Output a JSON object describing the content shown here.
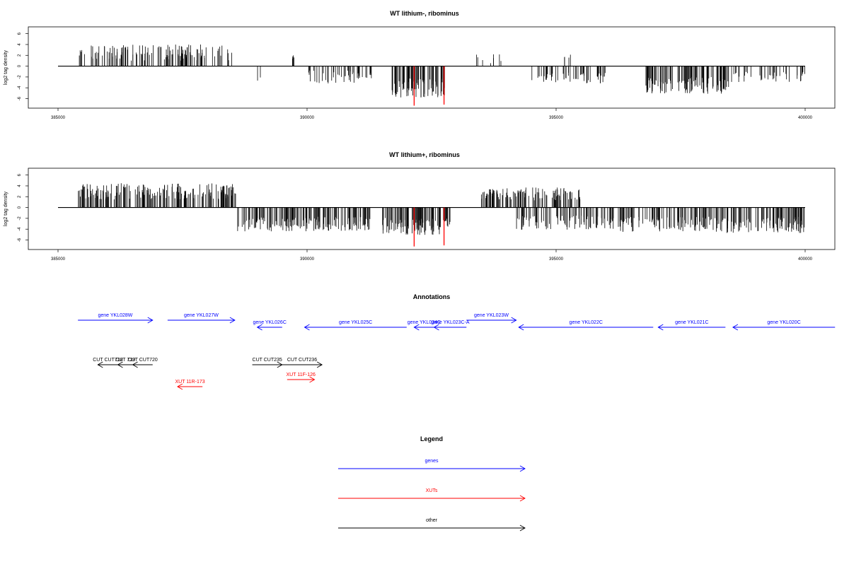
{
  "chart_data": [
    {
      "type": "bar",
      "title": "WT lithium-, ribominus",
      "ylabel": "log2 tag density",
      "xlabel": "",
      "xlim": [
        385000,
        400000
      ],
      "ylim": [
        -7.5,
        7
      ],
      "x_ticks": [
        385000,
        390000,
        395000,
        400000
      ],
      "y_ticks": [
        6,
        4,
        2,
        0,
        -2,
        -4,
        -6
      ],
      "grid": false,
      "series": [
        {
          "segments": [
            {
              "x0": 385400,
              "x1": 388500,
              "mean": 2.5,
              "spread": 1.5,
              "density": 130
            },
            {
              "x0": 389700,
              "x1": 389750,
              "mean": 2.0,
              "spread": 0.7,
              "density": 4
            },
            {
              "x0": 389000,
              "x1": 389100,
              "mean": -2.5,
              "spread": 0.5,
              "density": 2
            },
            {
              "x0": 390000,
              "x1": 391300,
              "mean": -2.0,
              "spread": 1.2,
              "density": 45
            },
            {
              "x0": 391700,
              "x1": 392800,
              "mean": -4.0,
              "spread": 1.8,
              "density": 80
            },
            {
              "x0": 393300,
              "x1": 394000,
              "mean": 1.5,
              "spread": 1.0,
              "density": 8
            },
            {
              "x0": 394500,
              "x1": 396000,
              "mean": -2.2,
              "spread": 1.0,
              "density": 55
            },
            {
              "x0": 395100,
              "x1": 395300,
              "mean": 1.8,
              "spread": 0.6,
              "density": 4
            },
            {
              "x0": 396800,
              "x1": 398500,
              "mean": -3.5,
              "spread": 1.6,
              "density": 110
            },
            {
              "x0": 398500,
              "x1": 400000,
              "mean": -2.0,
              "spread": 1.0,
              "density": 40
            }
          ],
          "highlights": [
            {
              "x": 392150,
              "y": -7.3
            },
            {
              "x": 392750,
              "y": -7.1
            }
          ]
        }
      ]
    },
    {
      "type": "bar",
      "title": "WT lithium+, ribominus",
      "ylabel": "log2 tag density",
      "xlabel": "",
      "xlim": [
        385000,
        400000
      ],
      "ylim": [
        -7.5,
        7
      ],
      "x_ticks": [
        385000,
        390000,
        395000,
        400000
      ],
      "y_ticks": [
        6,
        4,
        2,
        0,
        -2,
        -4,
        -6
      ],
      "grid": false,
      "series": [
        {
          "segments": [
            {
              "x0": 385400,
              "x1": 388600,
              "mean": 3.0,
              "spread": 1.5,
              "density": 200
            },
            {
              "x0": 388600,
              "x1": 390000,
              "mean": -3.0,
              "spread": 1.4,
              "density": 90
            },
            {
              "x0": 390000,
              "x1": 391300,
              "mean": -3.0,
              "spread": 1.3,
              "density": 80
            },
            {
              "x0": 391500,
              "x1": 392900,
              "mean": -3.5,
              "spread": 1.6,
              "density": 100
            },
            {
              "x0": 393500,
              "x1": 395500,
              "mean": 2.5,
              "spread": 1.2,
              "density": 110
            },
            {
              "x0": 394200,
              "x1": 396000,
              "mean": -2.8,
              "spread": 1.3,
              "density": 80
            },
            {
              "x0": 396000,
              "x1": 400000,
              "mean": -3.2,
              "spread": 1.5,
              "density": 220
            }
          ],
          "highlights": [
            {
              "x": 392150,
              "y": -7.2
            },
            {
              "x": 392750,
              "y": -7.0
            }
          ]
        }
      ]
    }
  ],
  "annotations": {
    "title": "Annotations",
    "genes": [
      {
        "label": "gene YKL028W",
        "x0": 385400,
        "x1": 386900,
        "dir": "right",
        "row": 0
      },
      {
        "label": "gene YKL027W",
        "x0": 387200,
        "x1": 388550,
        "dir": "right",
        "row": 0
      },
      {
        "label": "gene YKL026C",
        "x0": 389000,
        "x1": 389500,
        "dir": "left",
        "row": 1
      },
      {
        "label": "gene YKL025C",
        "x0": 389950,
        "x1": 392000,
        "dir": "left",
        "row": 1
      },
      {
        "label": "gene YKL024C",
        "x0": 392150,
        "x1": 392550,
        "dir": "left",
        "row": 1
      },
      {
        "label": "gene YKL023C-A",
        "x0": 392550,
        "x1": 393200,
        "dir": "left",
        "row": 1
      },
      {
        "label": "gene YKL023W",
        "x0": 393200,
        "x1": 394200,
        "dir": "right",
        "row": 0
      },
      {
        "label": "gene YKL022C",
        "x0": 394250,
        "x1": 396950,
        "dir": "left",
        "row": 1
      },
      {
        "label": "gene YKL021C",
        "x0": 397050,
        "x1": 398400,
        "dir": "left",
        "row": 1
      },
      {
        "label": "gene YKL020C",
        "x0": 398550,
        "x1": 400600,
        "dir": "left",
        "row": 1
      }
    ],
    "others": [
      {
        "label": "CUT CUT718",
        "x0": 385800,
        "x1": 386200,
        "dir": "left",
        "row": 0
      },
      {
        "label": "CUT 719",
        "x0": 386200,
        "x1": 386500,
        "dir": "left",
        "row": 0
      },
      {
        "label": "CUT CUT720",
        "x0": 386500,
        "x1": 386900,
        "dir": "left",
        "row": 0
      },
      {
        "label": "CUT CUT235",
        "x0": 388900,
        "x1": 389500,
        "dir": "right",
        "row": 0
      },
      {
        "label": "CUT CUT236",
        "x0": 389500,
        "x1": 390300,
        "dir": "right",
        "row": 0
      }
    ],
    "xuts": [
      {
        "label": "XUT 11R-173",
        "x0": 387400,
        "x1": 387900,
        "dir": "left",
        "row": 1
      },
      {
        "label": "XUT 11F-126",
        "x0": 389600,
        "x1": 390150,
        "dir": "right",
        "row": 0
      }
    ]
  },
  "legend": {
    "title": "Legend",
    "items": [
      {
        "label": "genes",
        "color": "#0000ff"
      },
      {
        "label": "XUTs",
        "color": "#ff0000"
      },
      {
        "label": "other",
        "color": "#000000"
      }
    ]
  },
  "colors": {
    "gene": "#0000ff",
    "xut": "#ff0000",
    "other": "#000000",
    "highlight": "#ff0000"
  }
}
